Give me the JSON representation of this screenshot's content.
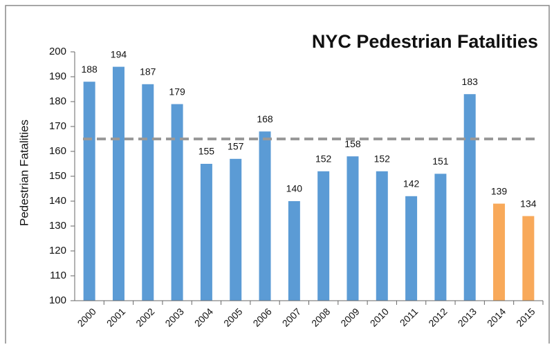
{
  "chart_data": {
    "type": "bar",
    "title": "NYC Pedestrian Fatalities",
    "y_label": "Pedestrian Fatalities",
    "categories": [
      "2000",
      "2001",
      "2002",
      "2003",
      "2004",
      "2005",
      "2006",
      "2007",
      "2008",
      "2009",
      "2010",
      "2011",
      "2012",
      "2013",
      "2014",
      "2015"
    ],
    "values": [
      188,
      194,
      187,
      179,
      155,
      157,
      168,
      140,
      152,
      158,
      152,
      142,
      151,
      183,
      139,
      134
    ],
    "colors": [
      "#5b9bd5",
      "#5b9bd5",
      "#5b9bd5",
      "#5b9bd5",
      "#5b9bd5",
      "#5b9bd5",
      "#5b9bd5",
      "#5b9bd5",
      "#5b9bd5",
      "#5b9bd5",
      "#5b9bd5",
      "#5b9bd5",
      "#5b9bd5",
      "#5b9bd5",
      "#f8a95a",
      "#f8a95a"
    ],
    "reference_line": 165,
    "ylim": [
      100,
      200
    ],
    "yticks": [
      100,
      110,
      120,
      130,
      140,
      150,
      160,
      170,
      180,
      190,
      200
    ],
    "grid": false
  }
}
